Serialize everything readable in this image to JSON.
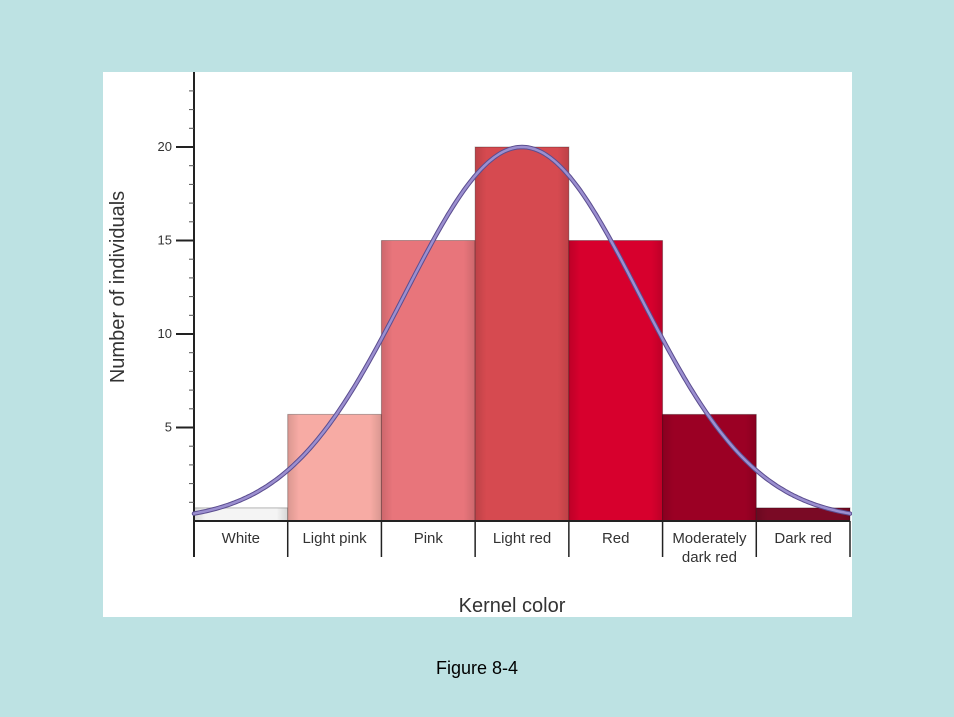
{
  "chart_data": {
    "type": "bar",
    "title": "",
    "xlabel": "Kernel color",
    "ylabel": "Number of individuals",
    "categories": [
      [
        "White"
      ],
      [
        "Light pink"
      ],
      [
        "Pink"
      ],
      [
        "Light red"
      ],
      [
        "Red"
      ],
      [
        "Moderately",
        "dark red"
      ],
      [
        "Dark red"
      ]
    ],
    "values": [
      0.7,
      5.7,
      15,
      20,
      15,
      5.7,
      0.7
    ],
    "bar_colors": [
      "#f4f4f4",
      "#f7aba4",
      "#e8757b",
      "#d64a50",
      "#d7002d",
      "#9b0024",
      "#7a0a25"
    ],
    "ylim": [
      0,
      24
    ],
    "yticks": [
      5,
      10,
      15,
      20
    ],
    "curve": {
      "type": "normal",
      "mean_index": 3,
      "peak": 20,
      "color": "#9b8fd0"
    },
    "grid": false,
    "legend": "none"
  },
  "caption": "Figure 8-4"
}
